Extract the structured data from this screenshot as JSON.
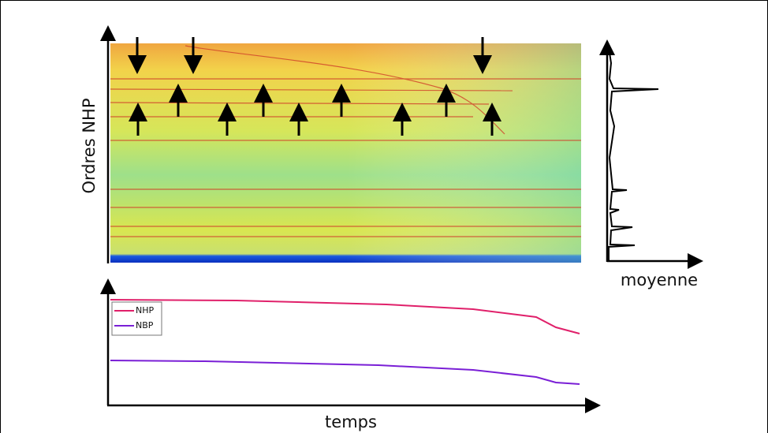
{
  "labels": {
    "y_axis": "Ordres NHP",
    "side_axis": "moyenne",
    "x_axis": "temps"
  },
  "legend": [
    "NHP",
    "NBP"
  ]
}
